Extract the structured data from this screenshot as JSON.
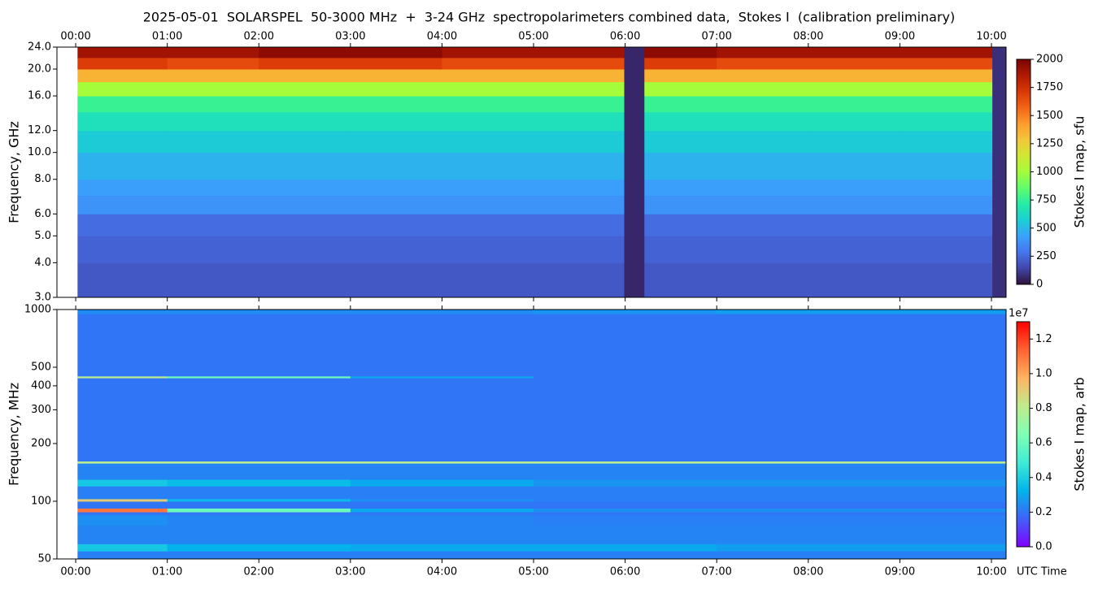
{
  "title": "2025-05-01  SOLARSPEL  50-3000 MHz  +  3-24 GHz  spectropolarimeters combined data,  Stokes I  (calibration preliminary)",
  "chart_data": [
    {
      "type": "heatmap",
      "ylabel": "Frequency, GHz",
      "colorbar_label": "Stokes I map, sfu",
      "y_scale": "log",
      "xtick_side": "top",
      "xlim": [
        -0.205,
        10.16
      ],
      "xticks": [
        {
          "value": 0,
          "label": "00:00"
        },
        {
          "value": 1,
          "label": "01:00"
        },
        {
          "value": 2,
          "label": "02:00"
        },
        {
          "value": 3,
          "label": "03:00"
        },
        {
          "value": 4,
          "label": "04:00"
        },
        {
          "value": 5,
          "label": "05:00"
        },
        {
          "value": 6,
          "label": "06:00"
        },
        {
          "value": 7,
          "label": "07:00"
        },
        {
          "value": 8,
          "label": "08:00"
        },
        {
          "value": 9,
          "label": "09:00"
        },
        {
          "value": 10,
          "label": "10:00"
        }
      ],
      "ylim": [
        3,
        24
      ],
      "yticks": [
        {
          "value": 3,
          "label": "3.0"
        },
        {
          "value": 4,
          "label": "4.0"
        },
        {
          "value": 5,
          "label": "5.0"
        },
        {
          "value": 6,
          "label": "6.0"
        },
        {
          "value": 8,
          "label": "8.0"
        },
        {
          "value": 10,
          "label": "10.0"
        },
        {
          "value": 12,
          "label": "12.0"
        },
        {
          "value": 16,
          "label": "16.0"
        },
        {
          "value": 20,
          "label": "20.0"
        },
        {
          "value": 24,
          "label": "24.0"
        }
      ],
      "x_edges": [
        0.02,
        1,
        2,
        3,
        4,
        5,
        5.99,
        6.21,
        7,
        8,
        9,
        10.01,
        10.16
      ],
      "y_edges": [
        3,
        4,
        5,
        6,
        7,
        8,
        10,
        12,
        14,
        16,
        18,
        20,
        22,
        24
      ],
      "z": [
        [
          200,
          200,
          200,
          200,
          200,
          200,
          60,
          200,
          200,
          200,
          200,
          80
        ],
        [
          230,
          230,
          230,
          230,
          230,
          230,
          60,
          230,
          230,
          230,
          230,
          80
        ],
        [
          260,
          260,
          260,
          260,
          260,
          260,
          60,
          260,
          260,
          260,
          260,
          80
        ],
        [
          380,
          380,
          380,
          380,
          380,
          380,
          60,
          380,
          380,
          380,
          380,
          80
        ],
        [
          420,
          420,
          420,
          420,
          420,
          420,
          60,
          420,
          420,
          420,
          420,
          80
        ],
        [
          480,
          480,
          480,
          480,
          480,
          480,
          60,
          480,
          480,
          480,
          480,
          80
        ],
        [
          560,
          560,
          560,
          560,
          560,
          560,
          60,
          560,
          560,
          560,
          560,
          80
        ],
        [
          650,
          650,
          650,
          650,
          650,
          650,
          60,
          650,
          650,
          650,
          650,
          80
        ],
        [
          760,
          760,
          760,
          760,
          760,
          760,
          60,
          760,
          760,
          760,
          760,
          80
        ],
        [
          1000,
          1000,
          1000,
          1000,
          1000,
          1000,
          60,
          1000,
          1000,
          1000,
          1000,
          80
        ],
        [
          1350,
          1350,
          1350,
          1350,
          1350,
          1350,
          60,
          1350,
          1350,
          1350,
          1350,
          80
        ],
        [
          1700,
          1650,
          1700,
          1700,
          1650,
          1650,
          60,
          1700,
          1650,
          1650,
          1650,
          80
        ],
        [
          1900,
          1900,
          1950,
          1950,
          1900,
          1900,
          60,
          1950,
          1900,
          1900,
          1900,
          80
        ]
      ],
      "clim": [
        0,
        2000
      ],
      "cticks": [
        0,
        250,
        500,
        750,
        1000,
        1250,
        1500,
        1750,
        2000
      ],
      "colormap": [
        "#30123b",
        "#4145ab",
        "#4675ed",
        "#39a2fc",
        "#1bcfd4",
        "#24eca6",
        "#61fc6c",
        "#a4fc3b",
        "#d1e834",
        "#f3c63a",
        "#fe9b2d",
        "#f36315",
        "#d93806",
        "#b11901",
        "#7a0403"
      ]
    },
    {
      "type": "heatmap",
      "ylabel": "Frequency, MHz",
      "colorbar_label": "Stokes I map, arb",
      "colorbar_offset": "1e7",
      "xlabel": "UTC Time",
      "y_scale": "log",
      "xtick_side": "bottom",
      "xlim": [
        -0.205,
        10.16
      ],
      "xticks": [
        {
          "value": 0,
          "label": "00:00"
        },
        {
          "value": 1,
          "label": "01:00"
        },
        {
          "value": 2,
          "label": "02:00"
        },
        {
          "value": 3,
          "label": "03:00"
        },
        {
          "value": 4,
          "label": "04:00"
        },
        {
          "value": 5,
          "label": "05:00"
        },
        {
          "value": 6,
          "label": "06:00"
        },
        {
          "value": 7,
          "label": "07:00"
        },
        {
          "value": 8,
          "label": "08:00"
        },
        {
          "value": 9,
          "label": "09:00"
        },
        {
          "value": 10,
          "label": "10:00"
        }
      ],
      "ylim": [
        50,
        1000
      ],
      "yticks": [
        50,
        100,
        200,
        300,
        400,
        500,
        1000
      ],
      "x_edges": [
        0.02,
        1,
        3,
        5,
        7,
        10.16
      ],
      "y_edges": [
        50,
        55,
        60,
        75,
        85,
        88,
        92,
        100,
        103,
        120,
        130,
        158,
        162,
        440,
        450,
        950,
        1000
      ],
      "z": [
        [
          2200000,
          2200000,
          2200000,
          2200000,
          2200000
        ],
        [
          3800000,
          3200000,
          3000000,
          3000000,
          2800000
        ],
        [
          2300000,
          2300000,
          2300000,
          2300000,
          2300000
        ],
        [
          2500000,
          2300000,
          2300000,
          2200000,
          2200000
        ],
        [
          2000000,
          2000000,
          2000000,
          2000000,
          2000000
        ],
        [
          11000000,
          6000000,
          3000000,
          2500000,
          2500000
        ],
        [
          2000000,
          2000000,
          2000000,
          2000000,
          2000000
        ],
        [
          9000000,
          3500000,
          2500000,
          2200000,
          2200000
        ],
        [
          2200000,
          2200000,
          2200000,
          2200000,
          2200000
        ],
        [
          3800000,
          3500000,
          3000000,
          2600000,
          2600000
        ],
        [
          2300000,
          2300000,
          2300000,
          2300000,
          2300000
        ],
        [
          8000000,
          8000000,
          8000000,
          8000000,
          8000000
        ],
        [
          2000000,
          2000000,
          2000000,
          2000000,
          2000000
        ],
        [
          8000000,
          6000000,
          3000000,
          2000000,
          2000000
        ],
        [
          2000000,
          2000000,
          2000000,
          2000000,
          2000000
        ],
        [
          2400000,
          2400000,
          2400000,
          2600000,
          2800000
        ]
      ],
      "clim": [
        0,
        13000000
      ],
      "cticks": [
        {
          "value": 0,
          "label": "0.0"
        },
        {
          "value": 2000000,
          "label": "0.2"
        },
        {
          "value": 4000000,
          "label": "0.4"
        },
        {
          "value": 6000000,
          "label": "0.6"
        },
        {
          "value": 8000000,
          "label": "0.8"
        },
        {
          "value": 10000000,
          "label": "1.0"
        },
        {
          "value": 12000000,
          "label": "1.2"
        }
      ],
      "colormap": [
        "#8000ff",
        "#4062fa",
        "#00b5eb",
        "#40ecd4",
        "#80ffb4",
        "#c0eb8d",
        "#ffb462",
        "#ff6232",
        "#ff0000"
      ]
    }
  ]
}
